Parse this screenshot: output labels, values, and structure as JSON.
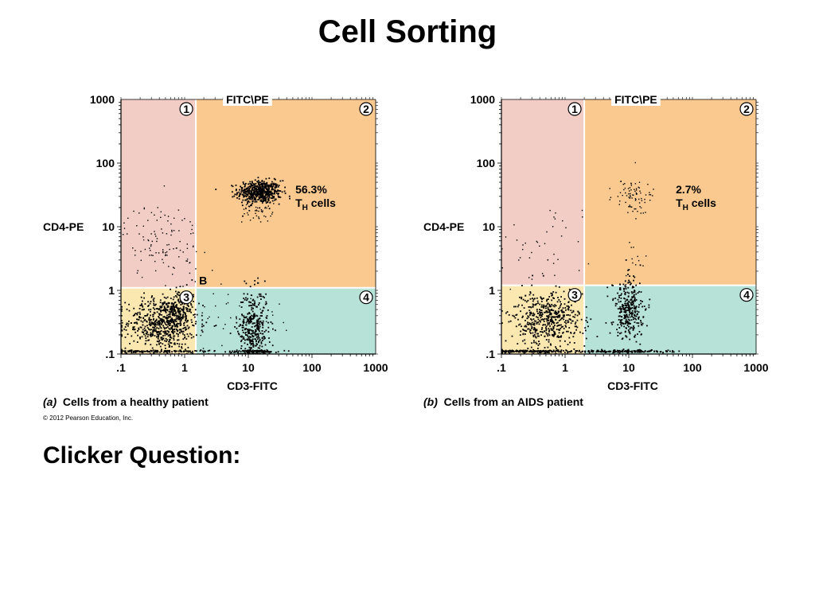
{
  "slide": {
    "title": "Cell Sorting",
    "clicker": "Clicker Question:",
    "copyright": "© 2012 Pearson Education, Inc."
  },
  "colors": {
    "q1": "#f2cdc6",
    "q2": "#f9c98f",
    "q3": "#fbe7b0",
    "q4": "#b6e2d8",
    "dots": "#000000"
  },
  "chart_data": [
    {
      "type": "scatter",
      "panel": "a",
      "caption_letter": "(a)",
      "caption": "Cells from a healthy patient",
      "top_label": "FITC\\PE",
      "xlabel": "CD3-FITC",
      "ylabel": "CD4-PE",
      "x_scale": "log",
      "y_scale": "log",
      "xlim": [
        0.1,
        1000
      ],
      "ylim": [
        0.1,
        1000
      ],
      "x_ticks": [
        ".1",
        "1",
        "10",
        "100",
        "1000"
      ],
      "y_ticks": [
        ".1",
        "1",
        "10",
        "100",
        "1000"
      ],
      "gate_x": 1.5,
      "gate_y": 1.1,
      "quadrant_labels": [
        "1",
        "2",
        "3",
        "4"
      ],
      "annotation_pct": "56.3%",
      "annotation_t": "T",
      "annotation_sub": "H",
      "annotation_rest": " cells",
      "annotation_at": [
        200,
        30
      ],
      "extra_label": "B",
      "clusters": [
        {
          "cx": 15,
          "cy": 35,
          "sx": 0.17,
          "sy": 0.09,
          "n": 520,
          "dense": true
        },
        {
          "cx": 14,
          "cy": 20,
          "sx": 0.12,
          "sy": 0.12,
          "n": 60,
          "dense": false
        },
        {
          "cx": 0.45,
          "cy": 0.3,
          "sx": 0.28,
          "sy": 0.2,
          "n": 620,
          "dense": true
        },
        {
          "cx": 0.8,
          "cy": 0.5,
          "sx": 0.12,
          "sy": 0.15,
          "n": 160,
          "dense": true
        },
        {
          "cx": 12,
          "cy": 0.25,
          "sx": 0.12,
          "sy": 0.3,
          "n": 380,
          "dense": true
        },
        {
          "cx": 0.45,
          "cy": 6,
          "sx": 0.3,
          "sy": 0.3,
          "n": 110,
          "dense": false
        },
        {
          "cx": 0.3,
          "cy": 0.11,
          "sx": 0.5,
          "sy": 0.01,
          "n": 160,
          "dense": true
        },
        {
          "cx": 12,
          "cy": 0.11,
          "sx": 0.2,
          "sy": 0.01,
          "n": 90,
          "dense": true
        },
        {
          "cx": 5,
          "cy": 0.4,
          "sx": 0.6,
          "sy": 0.3,
          "n": 40,
          "dense": false
        }
      ]
    },
    {
      "type": "scatter",
      "panel": "b",
      "caption_letter": "(b)",
      "caption": "Cells from an AIDS patient",
      "top_label": "FITC\\PE",
      "xlabel": "CD3-FITC",
      "ylabel": "CD4-PE",
      "x_scale": "log",
      "y_scale": "log",
      "xlim": [
        0.1,
        1000
      ],
      "ylim": [
        0.1,
        1000
      ],
      "x_ticks": [
        ".1",
        "1",
        "10",
        "100",
        "1000"
      ],
      "y_ticks": [
        ".1",
        "1",
        "10",
        "100",
        "1000"
      ],
      "gate_x": 2,
      "gate_y": 1.2,
      "quadrant_labels": [
        "1",
        "2",
        "3",
        "4"
      ],
      "annotation_pct": "2.7%",
      "annotation_t": "T",
      "annotation_sub": "H",
      "annotation_rest": " cells",
      "annotation_at": [
        200,
        30
      ],
      "extra_label": "",
      "clusters": [
        {
          "cx": 12,
          "cy": 30,
          "sx": 0.15,
          "sy": 0.15,
          "n": 80,
          "dense": false
        },
        {
          "cx": 0.5,
          "cy": 0.35,
          "sx": 0.28,
          "sy": 0.22,
          "n": 520,
          "dense": true
        },
        {
          "cx": 10,
          "cy": 0.5,
          "sx": 0.12,
          "sy": 0.25,
          "n": 320,
          "dense": true
        },
        {
          "cx": 0.3,
          "cy": 0.11,
          "sx": 0.5,
          "sy": 0.01,
          "n": 220,
          "dense": true
        },
        {
          "cx": 10,
          "cy": 0.11,
          "sx": 0.35,
          "sy": 0.01,
          "n": 140,
          "dense": true
        },
        {
          "cx": 0.5,
          "cy": 6,
          "sx": 0.35,
          "sy": 0.35,
          "n": 40,
          "dense": false
        },
        {
          "cx": 12,
          "cy": 2.5,
          "sx": 0.12,
          "sy": 0.2,
          "n": 12,
          "dense": false
        }
      ]
    }
  ]
}
